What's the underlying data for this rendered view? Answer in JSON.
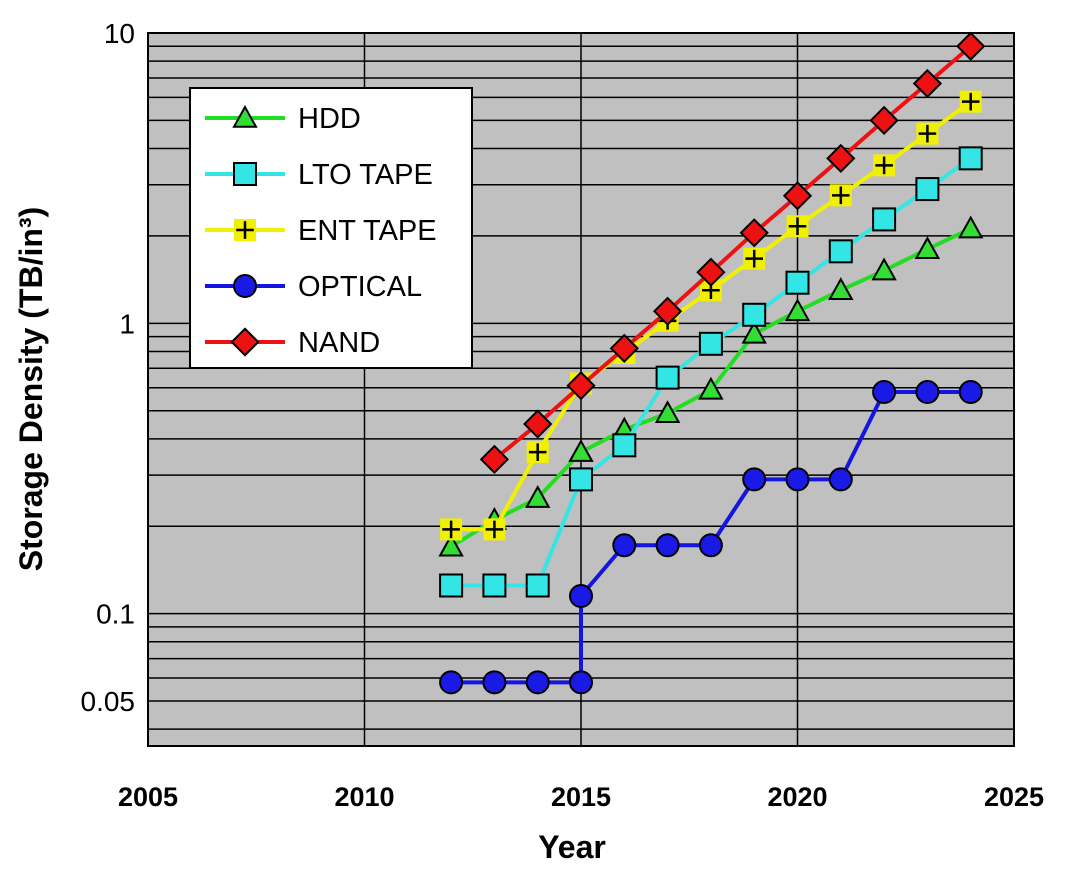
{
  "chart_data": {
    "type": "line",
    "xlabel": "Year",
    "ylabel": "Storage Density (TB/in³)",
    "xlim": [
      2005,
      2025
    ],
    "ylim": [
      0.035,
      10
    ],
    "yscale": "log",
    "x_ticks": [
      "2005",
      "2010",
      "2015",
      "2020",
      "2025"
    ],
    "y_ticks": [
      {
        "value": 10,
        "label": "10"
      },
      {
        "value": 1,
        "label": "1"
      },
      {
        "value": 0.1,
        "label": "0.1"
      },
      {
        "value": 0.05,
        "label": "0.05"
      }
    ],
    "grid": true,
    "legend_position": "top-left",
    "plot_background": "#c0c0c0",
    "series": [
      {
        "name": "HDD",
        "color": "#22dd22",
        "marker": "triangle",
        "marker_fill": "#33dd33",
        "x": [
          2012,
          2013,
          2014,
          2015,
          2016,
          2017,
          2018,
          2019,
          2020,
          2021,
          2022,
          2023,
          2024
        ],
        "values": [
          0.17,
          0.21,
          0.25,
          0.36,
          0.43,
          0.49,
          0.59,
          0.92,
          1.1,
          1.3,
          1.52,
          1.8,
          2.12
        ]
      },
      {
        "name": "LTO TAPE",
        "color": "#33e5e5",
        "marker": "square",
        "marker_fill": "#33e5e5",
        "x": [
          2012,
          2013,
          2014,
          2015,
          2016,
          2017,
          2018,
          2019,
          2020,
          2021,
          2022,
          2023,
          2024
        ],
        "values": [
          0.125,
          0.125,
          0.125,
          0.29,
          0.38,
          0.65,
          0.85,
          1.07,
          1.38,
          1.77,
          2.28,
          2.9,
          3.7
        ]
      },
      {
        "name": "ENT TAPE",
        "color": "#f0f000",
        "marker": "plus",
        "marker_fill": "#f0f000",
        "x": [
          2012,
          2013,
          2014,
          2015,
          2016,
          2017,
          2018,
          2019,
          2020,
          2021,
          2022,
          2023,
          2024
        ],
        "values": [
          0.195,
          0.195,
          0.36,
          0.62,
          0.79,
          1.02,
          1.3,
          1.67,
          2.16,
          2.76,
          3.5,
          4.5,
          5.8
        ]
      },
      {
        "name": "OPTICAL",
        "color": "#1515e0",
        "marker": "circle",
        "marker_fill": "#1a1ae6",
        "x": [
          2012,
          2013,
          2014,
          2015,
          2015,
          2016,
          2017,
          2018,
          2019,
          2020,
          2021,
          2022,
          2023,
          2024
        ],
        "values": [
          0.058,
          0.058,
          0.058,
          0.058,
          0.115,
          0.172,
          0.172,
          0.172,
          0.29,
          0.29,
          0.29,
          0.58,
          0.58,
          0.58
        ]
      },
      {
        "name": "NAND",
        "color": "#ee1111",
        "marker": "diamond",
        "marker_fill": "#ee1111",
        "x": [
          2013,
          2014,
          2015,
          2016,
          2017,
          2018,
          2019,
          2020,
          2021,
          2022,
          2023,
          2024
        ],
        "values": [
          0.34,
          0.45,
          0.61,
          0.82,
          1.1,
          1.5,
          2.05,
          2.75,
          3.7,
          5.0,
          6.7,
          9.0
        ]
      }
    ]
  }
}
